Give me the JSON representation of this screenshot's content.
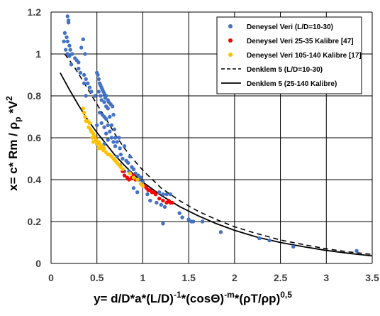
{
  "chart_data": {
    "type": "scatter",
    "xlim": [
      0,
      3.5
    ],
    "ylim": [
      0,
      1.2
    ],
    "x_ticks": [
      {
        "value": 0,
        "label": "0"
      },
      {
        "value": 0.5,
        "label": "0.5"
      },
      {
        "value": 1,
        "label": "1"
      },
      {
        "value": 1.5,
        "label": "1.5"
      },
      {
        "value": 2,
        "label": "2"
      },
      {
        "value": 2.5,
        "label": "2.5"
      },
      {
        "value": 3,
        "label": "3"
      },
      {
        "value": 3.5,
        "label": "3.5"
      }
    ],
    "y_ticks": [
      {
        "value": 0,
        "label": "0"
      },
      {
        "value": 0.2,
        "label": "0.2"
      },
      {
        "value": 0.4,
        "label": "0.4"
      },
      {
        "value": 0.6,
        "label": "0.6"
      },
      {
        "value": 0.8,
        "label": "0.8"
      },
      {
        "value": 1,
        "label": "1"
      },
      {
        "value": 1.2,
        "label": "1.2"
      }
    ],
    "grid": true,
    "legend_position": "top-right",
    "xlabel": {
      "text": "y= d/D*a*(L/D)",
      "sup1": "-1",
      "mid": "*(cosΘ)",
      "sup2": "-m",
      "tail": "*(ρT/ρp)",
      "sup3": "0,5"
    },
    "ylabel": {
      "text": "x= c* Rm / ρ",
      "sub": "p",
      "tail": " *V",
      "sup": "2"
    },
    "series": [
      {
        "name": "Deneysel Veri (L/D=10-30)",
        "kind": "scatter",
        "color": "#4472c4",
        "points": [
          [
            0.18,
            1.18
          ],
          [
            0.19,
            1.16
          ],
          [
            0.19,
            1.15
          ],
          [
            0.15,
            1.1
          ],
          [
            0.17,
            1.08
          ],
          [
            0.14,
            1.06
          ],
          [
            0.18,
            1.06
          ],
          [
            0.2,
            1.04
          ],
          [
            0.16,
            1.02
          ],
          [
            0.18,
            1.0
          ],
          [
            0.21,
            1.02
          ],
          [
            0.2,
            0.99
          ],
          [
            0.23,
            1.0
          ],
          [
            0.26,
            0.98
          ],
          [
            0.28,
            0.97
          ],
          [
            0.22,
            0.95
          ],
          [
            0.3,
            0.96
          ],
          [
            0.35,
            1.07
          ],
          [
            0.33,
            1.03
          ],
          [
            0.37,
            1.0
          ],
          [
            0.3,
            0.93
          ],
          [
            0.32,
            0.91
          ],
          [
            0.36,
            0.9
          ],
          [
            0.38,
            0.88
          ],
          [
            0.36,
            0.86
          ],
          [
            0.4,
            0.86
          ],
          [
            0.42,
            0.84
          ],
          [
            0.44,
            0.82
          ],
          [
            0.48,
            0.8
          ],
          [
            0.38,
            0.8
          ],
          [
            0.5,
            0.91
          ],
          [
            0.51,
            0.9
          ],
          [
            0.52,
            0.88
          ],
          [
            0.53,
            0.86
          ],
          [
            0.54,
            0.85
          ],
          [
            0.55,
            0.84
          ],
          [
            0.56,
            0.83
          ],
          [
            0.52,
            0.82
          ],
          [
            0.57,
            0.82
          ],
          [
            0.58,
            0.81
          ],
          [
            0.54,
            0.8
          ],
          [
            0.59,
            0.79
          ],
          [
            0.6,
            0.8
          ],
          [
            0.62,
            0.78
          ],
          [
            0.55,
            0.78
          ],
          [
            0.58,
            0.77
          ],
          [
            0.63,
            0.77
          ],
          [
            0.65,
            0.76
          ],
          [
            0.6,
            0.75
          ],
          [
            0.67,
            0.75
          ],
          [
            0.62,
            0.74
          ],
          [
            0.53,
            0.72
          ],
          [
            0.56,
            0.71
          ],
          [
            0.58,
            0.7
          ],
          [
            0.6,
            0.69
          ],
          [
            0.64,
            0.7
          ],
          [
            0.68,
            0.71
          ],
          [
            0.55,
            0.67
          ],
          [
            0.62,
            0.66
          ],
          [
            0.66,
            0.66
          ],
          [
            0.5,
            0.66
          ],
          [
            0.58,
            0.65
          ],
          [
            0.64,
            0.63
          ],
          [
            0.6,
            0.62
          ],
          [
            0.66,
            0.6
          ],
          [
            0.7,
            0.6
          ],
          [
            0.62,
            0.59
          ],
          [
            0.68,
            0.58
          ],
          [
            0.72,
            0.58
          ],
          [
            0.58,
            0.57
          ],
          [
            0.7,
            0.56
          ],
          [
            0.75,
            0.55
          ],
          [
            0.8,
            0.56
          ],
          [
            0.76,
            0.52
          ],
          [
            0.78,
            0.5
          ],
          [
            0.82,
            0.49
          ],
          [
            0.84,
            0.48
          ],
          [
            0.88,
            0.46
          ],
          [
            0.9,
            0.45
          ],
          [
            0.85,
            0.44
          ],
          [
            0.92,
            0.43
          ],
          [
            0.95,
            0.42
          ],
          [
            0.98,
            0.41
          ],
          [
            0.96,
            0.4
          ],
          [
            1.0,
            0.39
          ],
          [
            0.98,
            0.38
          ],
          [
            1.02,
            0.37
          ],
          [
            0.9,
            0.36
          ],
          [
            0.94,
            0.34
          ],
          [
            1.06,
            0.35
          ],
          [
            1.1,
            0.34
          ],
          [
            1.05,
            0.33
          ],
          [
            1.14,
            0.33
          ],
          [
            1.18,
            0.34
          ],
          [
            1.22,
            0.33
          ],
          [
            1.26,
            0.33
          ],
          [
            1.3,
            0.33
          ],
          [
            1.08,
            0.3
          ],
          [
            1.15,
            0.29
          ],
          [
            1.2,
            0.28
          ],
          [
            1.24,
            0.27
          ],
          [
            1.4,
            0.24
          ],
          [
            1.43,
            0.22
          ],
          [
            1.5,
            0.21
          ],
          [
            1.22,
            0.19
          ],
          [
            1.53,
            0.2
          ],
          [
            1.55,
            0.2
          ],
          [
            1.65,
            0.2
          ],
          [
            1.85,
            0.15
          ],
          [
            2.27,
            0.12
          ],
          [
            2.38,
            0.11
          ],
          [
            2.64,
            0.08
          ],
          [
            3.33,
            0.06
          ],
          [
            0.72,
            0.51
          ],
          [
            0.8,
            0.44
          ],
          [
            0.75,
            0.47
          ],
          [
            0.86,
            0.51
          ],
          [
            0.74,
            0.6
          ],
          [
            0.69,
            0.64
          ]
        ]
      },
      {
        "name": "Deneysel Veri 25-35 Kalibre [47]",
        "kind": "scatter",
        "color": "#ff0000",
        "points": [
          [
            0.78,
            0.44
          ],
          [
            0.8,
            0.42
          ],
          [
            0.83,
            0.41
          ],
          [
            0.85,
            0.4
          ],
          [
            0.88,
            0.41
          ],
          [
            0.9,
            0.42
          ],
          [
            0.92,
            0.4
          ],
          [
            1.02,
            0.37
          ],
          [
            1.04,
            0.36
          ],
          [
            1.06,
            0.35
          ],
          [
            1.08,
            0.35
          ],
          [
            1.1,
            0.34
          ],
          [
            1.12,
            0.34
          ],
          [
            1.14,
            0.33
          ],
          [
            1.18,
            0.31
          ],
          [
            1.22,
            0.3
          ],
          [
            1.26,
            0.29
          ],
          [
            1.28,
            0.3
          ],
          [
            1.3,
            0.29
          ],
          [
            1.32,
            0.29
          ]
        ]
      },
      {
        "name": "Deneysel Veri 105-140 Kalibre [17]",
        "kind": "scatter",
        "color": "#ffc000",
        "points": [
          [
            0.35,
            0.74
          ],
          [
            0.36,
            0.72
          ],
          [
            0.37,
            0.7
          ],
          [
            0.38,
            0.68
          ],
          [
            0.4,
            0.68
          ],
          [
            0.42,
            0.67
          ],
          [
            0.41,
            0.65
          ],
          [
            0.43,
            0.64
          ],
          [
            0.44,
            0.63
          ],
          [
            0.46,
            0.62
          ],
          [
            0.47,
            0.61
          ],
          [
            0.45,
            0.6
          ],
          [
            0.48,
            0.6
          ],
          [
            0.49,
            0.59
          ],
          [
            0.5,
            0.58
          ],
          [
            0.52,
            0.58
          ],
          [
            0.5,
            0.57
          ],
          [
            0.53,
            0.57
          ],
          [
            0.54,
            0.56
          ],
          [
            0.55,
            0.55
          ],
          [
            0.56,
            0.56
          ],
          [
            0.57,
            0.54
          ],
          [
            0.58,
            0.55
          ],
          [
            0.6,
            0.53
          ],
          [
            0.62,
            0.52
          ],
          [
            0.64,
            0.52
          ],
          [
            0.66,
            0.51
          ],
          [
            0.68,
            0.5
          ],
          [
            0.7,
            0.49
          ],
          [
            0.72,
            0.48
          ],
          [
            0.74,
            0.47
          ],
          [
            0.76,
            0.46
          ],
          [
            0.78,
            0.45
          ],
          [
            0.86,
            0.43
          ],
          [
            0.9,
            0.41
          ],
          [
            0.94,
            0.4
          ],
          [
            0.98,
            0.38
          ],
          [
            1.0,
            0.37
          ],
          [
            0.46,
            0.58
          ],
          [
            0.52,
            0.55
          ]
        ]
      },
      {
        "name": "Denklem 5 (L/D=10-30)",
        "kind": "line",
        "dash": "7,5",
        "color": "#000000",
        "points": [
          [
            0.15,
            1.0
          ],
          [
            0.25,
            0.94
          ],
          [
            0.35,
            0.87
          ],
          [
            0.5,
            0.76
          ],
          [
            0.6,
            0.69
          ],
          [
            0.7,
            0.615
          ],
          [
            0.8,
            0.55
          ],
          [
            0.9,
            0.495
          ],
          [
            1.0,
            0.445
          ],
          [
            1.2,
            0.36
          ],
          [
            1.4,
            0.3
          ],
          [
            1.6,
            0.25
          ],
          [
            1.8,
            0.21
          ],
          [
            2.0,
            0.175
          ],
          [
            2.2,
            0.148
          ],
          [
            2.5,
            0.112
          ],
          [
            2.75,
            0.09
          ],
          [
            3.0,
            0.07
          ],
          [
            3.25,
            0.055
          ],
          [
            3.5,
            0.043
          ]
        ]
      },
      {
        "name": "Denklem 5 (25-140 Kalibre)",
        "kind": "line",
        "color": "#000000",
        "points": [
          [
            0.1,
            0.91
          ],
          [
            0.2,
            0.83
          ],
          [
            0.3,
            0.755
          ],
          [
            0.4,
            0.685
          ],
          [
            0.5,
            0.625
          ],
          [
            0.6,
            0.57
          ],
          [
            0.7,
            0.515
          ],
          [
            0.8,
            0.468
          ],
          [
            0.9,
            0.425
          ],
          [
            1.0,
            0.388
          ],
          [
            1.2,
            0.325
          ],
          [
            1.4,
            0.272
          ],
          [
            1.6,
            0.228
          ],
          [
            1.8,
            0.19
          ],
          [
            2.0,
            0.158
          ],
          [
            2.25,
            0.125
          ],
          [
            2.5,
            0.1
          ],
          [
            2.75,
            0.08
          ],
          [
            3.0,
            0.062
          ],
          [
            3.25,
            0.048
          ],
          [
            3.5,
            0.036
          ]
        ]
      }
    ]
  }
}
